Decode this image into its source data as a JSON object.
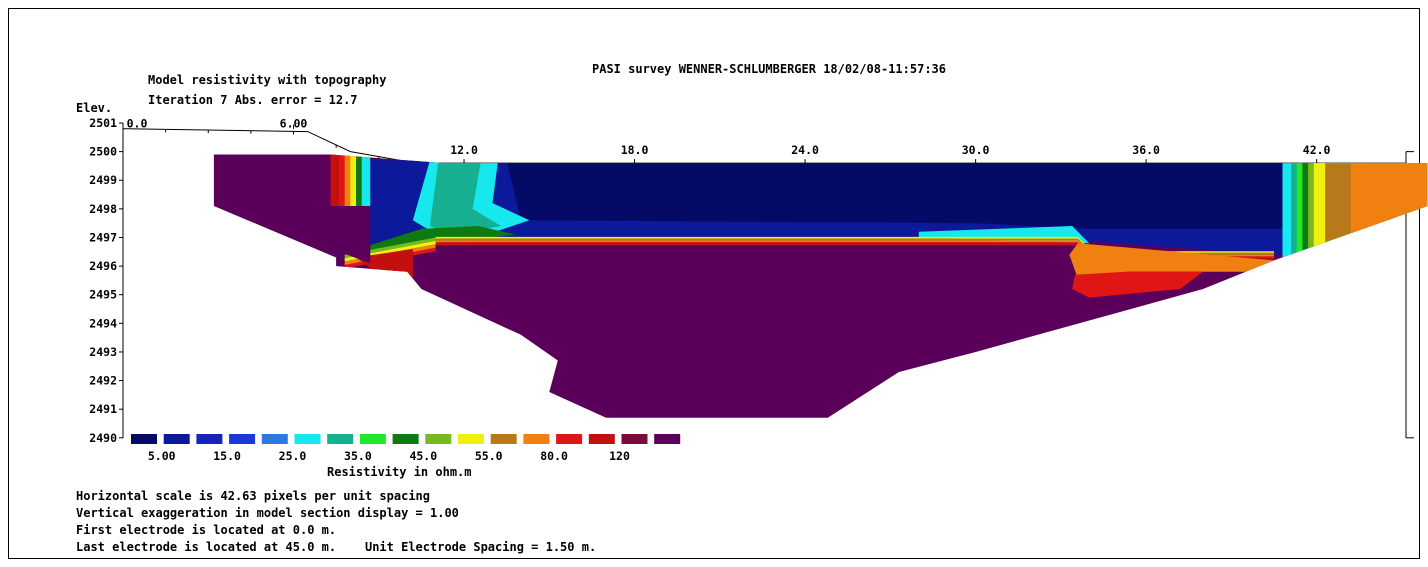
{
  "header": {
    "survey_title": "PASI survey WENNER-SCHLUMBERGER 18/02/08-11:57:36",
    "model_title": "Model resistivity with topography",
    "iteration_line": "Iteration 7 Abs. error = 12.7",
    "elev_label": "Elev."
  },
  "chart_data": {
    "type": "heatmap",
    "title": "Model resistivity with topography",
    "x_ticks": [
      {
        "value": 0,
        "label": "0.0"
      },
      {
        "value": 6,
        "label": "6.00"
      },
      {
        "value": 12,
        "label": "12.0"
      },
      {
        "value": 18,
        "label": "18.0"
      },
      {
        "value": 24,
        "label": "24.0"
      },
      {
        "value": 30,
        "label": "30.0"
      },
      {
        "value": 36,
        "label": "36.0"
      },
      {
        "value": 42,
        "label": "42.0"
      }
    ],
    "xlim": [
      0,
      45
    ],
    "ylabel": "Elev.",
    "ylim": [
      2490,
      2501
    ],
    "y_ticks": [
      2501,
      2500,
      2499,
      2498,
      2497,
      2496,
      2495,
      2494,
      2493,
      2492,
      2491,
      2490
    ],
    "surface": [
      [
        0,
        2500.8
      ],
      [
        6.5,
        2500.7
      ],
      [
        8,
        2500.0
      ],
      [
        10.3,
        2499.6
      ],
      [
        42,
        2499.6
      ]
    ],
    "section_outline": [
      [
        3.2,
        2499.9
      ],
      [
        7.3,
        2499.9
      ],
      [
        11.3,
        2499.6
      ],
      [
        45.9,
        2499.6
      ],
      [
        45.9,
        2498.1
      ],
      [
        40.5,
        2496.2
      ],
      [
        38,
        2495.2
      ],
      [
        30,
        2493.0
      ],
      [
        27.3,
        2492.3
      ],
      [
        24.8,
        2490.7
      ],
      [
        17,
        2490.7
      ],
      [
        15,
        2491.6
      ],
      [
        15.3,
        2492.7
      ],
      [
        14,
        2493.6
      ],
      [
        10.5,
        2495.2
      ],
      [
        10,
        2495.8
      ],
      [
        7.5,
        2496.0
      ],
      [
        7.5,
        2496.3
      ],
      [
        3.2,
        2498.1
      ]
    ],
    "colorbar": {
      "label": "Resistivity in ohm.m",
      "colors": [
        "#050a66",
        "#0c199a",
        "#1624b8",
        "#1a37da",
        "#2a7ae0",
        "#16e8ee",
        "#16b090",
        "#1eea2a",
        "#0e7a10",
        "#78b820",
        "#f0f010",
        "#b8791a",
        "#f08010",
        "#e01616",
        "#c40f0f",
        "#7a0c3a",
        "#5a005a"
      ],
      "labels": [
        "5.00",
        "15.0",
        "25.0",
        "35.0",
        "45.0",
        "55.0",
        "80.0",
        "120"
      ]
    }
  },
  "notes": [
    "Horizontal scale is 42.63 pixels per unit spacing",
    "Vertical exaggeration in model section display = 1.00",
    "First electrode is located at 0.0 m.",
    "Last electrode is located at 45.0 m.    Unit Electrode Spacing = 1.50 m."
  ]
}
